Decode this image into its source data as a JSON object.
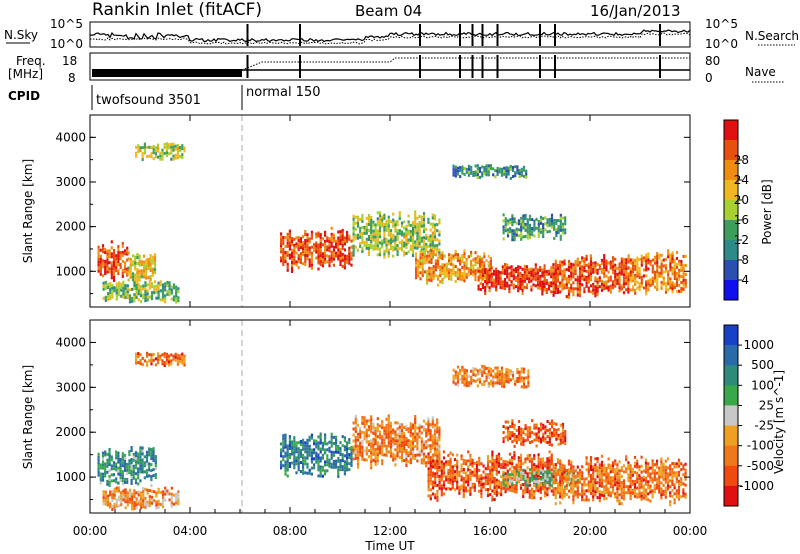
{
  "header": {
    "station": "Rankin Inlet (fitACF)",
    "beam": "Beam 04",
    "date": "16/Jan/2013"
  },
  "status_panel": {
    "nsky_label": "N.Sky",
    "nsky_ticks": [
      "10^5",
      "10^0"
    ],
    "nsearch_label": "N.Search",
    "nsearch_ticks": [
      "10^5",
      "10^0"
    ],
    "freq_label": "Freq.",
    "freq_unit": "[MHz]",
    "freq_ticks": [
      "18",
      "8"
    ],
    "nave_label": "Nave",
    "nave_ticks": [
      "80",
      "0"
    ],
    "cpid_label": "CPID",
    "cpid_modes": [
      {
        "name": "twofsound 3501",
        "start_hour": 0,
        "end_hour": 6
      },
      {
        "name": "normal 150",
        "start_hour": 6,
        "end_hour": 24
      }
    ]
  },
  "chart_data": [
    {
      "type": "heatmap",
      "name": "power",
      "ylabel": "Slant Range [km]",
      "xlabel": "",
      "yticks": [
        "1000",
        "2000",
        "3000",
        "4000"
      ],
      "ylim": [
        200,
        4500
      ],
      "xlim": [
        0,
        24
      ],
      "colorbar": {
        "label": "Power [dB]",
        "ticks": [
          "4",
          "8",
          "12",
          "16",
          "20",
          "24",
          "28"
        ],
        "colors": [
          "#1010ee",
          "#2a4fb0",
          "#2e8a86",
          "#3c9e5a",
          "#a8d030",
          "#f0b820",
          "#f08c10",
          "#e85010",
          "#e01010"
        ]
      },
      "regions": [
        {
          "x": [
            0.3,
            1.5
          ],
          "y": [
            800,
            1700
          ],
          "level": 0.85
        },
        {
          "x": [
            1.5,
            2.6
          ],
          "y": [
            700,
            1500
          ],
          "level": 0.6
        },
        {
          "x": [
            0.5,
            3.5
          ],
          "y": [
            300,
            800
          ],
          "level": 0.45
        },
        {
          "x": [
            1.8,
            3.8
          ],
          "y": [
            3500,
            3900
          ],
          "level": 0.5
        },
        {
          "x": [
            7.6,
            10.5
          ],
          "y": [
            1000,
            2000
          ],
          "level": 0.85
        },
        {
          "x": [
            10.5,
            14.0
          ],
          "y": [
            1300,
            2400
          ],
          "level": 0.5
        },
        {
          "x": [
            13.0,
            16.0
          ],
          "y": [
            700,
            1500
          ],
          "level": 0.7
        },
        {
          "x": [
            15.5,
            18.8
          ],
          "y": [
            500,
            1200
          ],
          "level": 0.9
        },
        {
          "x": [
            18.5,
            21.5
          ],
          "y": [
            400,
            1400
          ],
          "level": 0.85
        },
        {
          "x": [
            21.5,
            23.8
          ],
          "y": [
            500,
            1500
          ],
          "level": 0.75
        },
        {
          "x": [
            16.5,
            19.0
          ],
          "y": [
            1700,
            2300
          ],
          "level": 0.35
        },
        {
          "x": [
            14.5,
            17.5
          ],
          "y": [
            3100,
            3400
          ],
          "level": 0.3
        }
      ]
    },
    {
      "type": "heatmap",
      "name": "velocity",
      "ylabel": "Slant Range [km]",
      "xlabel": "Time UT",
      "yticks": [
        "1000",
        "2000",
        "3000",
        "4000"
      ],
      "xticks": [
        "00:00",
        "04:00",
        "08:00",
        "12:00",
        "16:00",
        "20:00",
        "00:00"
      ],
      "ylim": [
        200,
        4500
      ],
      "xlim": [
        0,
        24
      ],
      "colorbar": {
        "label": "Velocity [m s^-1]",
        "ticks": [
          "1000",
          "500",
          "100",
          "25",
          "-25",
          "-100",
          "-500",
          "-1000"
        ],
        "colors": [
          "#1a3fc8",
          "#2a6aa8",
          "#2e8a7a",
          "#3aa84a",
          "#c8c8c8",
          "#f0a020",
          "#f07818",
          "#f04a10",
          "#e01010"
        ]
      },
      "regions": [
        {
          "x": [
            0.3,
            2.6
          ],
          "y": [
            800,
            1700
          ],
          "level": 0.3
        },
        {
          "x": [
            0.5,
            3.5
          ],
          "y": [
            300,
            800
          ],
          "level": 0.65
        },
        {
          "x": [
            1.8,
            3.8
          ],
          "y": [
            3500,
            3800
          ],
          "level": 0.75
        },
        {
          "x": [
            7.6,
            10.5
          ],
          "y": [
            1000,
            2000
          ],
          "level": 0.25
        },
        {
          "x": [
            10.5,
            14.0
          ],
          "y": [
            1200,
            2400
          ],
          "level": 0.7
        },
        {
          "x": [
            13.5,
            18.5
          ],
          "y": [
            500,
            1600
          ],
          "level": 0.8
        },
        {
          "x": [
            16.5,
            19.5
          ],
          "y": [
            800,
            1200
          ],
          "level": 0.45
        },
        {
          "x": [
            18.5,
            23.8
          ],
          "y": [
            400,
            1500
          ],
          "level": 0.75
        },
        {
          "x": [
            16.5,
            19.0
          ],
          "y": [
            1700,
            2300
          ],
          "level": 0.8
        },
        {
          "x": [
            14.5,
            17.5
          ],
          "y": [
            3000,
            3500
          ],
          "level": 0.7
        }
      ]
    }
  ]
}
